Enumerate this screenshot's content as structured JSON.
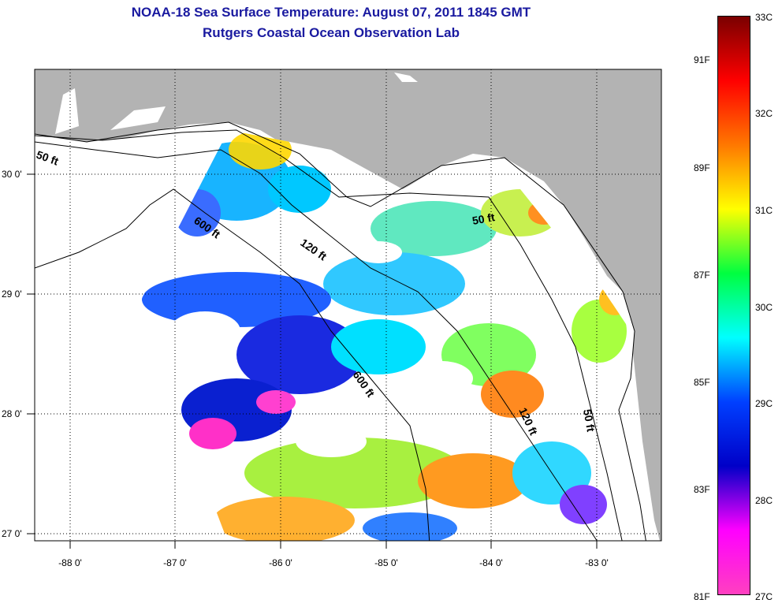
{
  "title": "NOAA-18 Sea Surface Temperature:  August 07, 2011 1845 GMT",
  "subtitle": "Rutgers Coastal Ocean Observation Lab",
  "map": {
    "lon_labels": [
      "-88 0'",
      "-87 0'",
      "-86 0'",
      "-85 0'",
      "-84 0'",
      "-83 0'"
    ],
    "lat_labels": [
      "30 0'",
      "29 0'",
      "28 0'",
      "27 0'"
    ],
    "contour_labels": [
      "50 ft",
      "600 ft",
      "120 ft",
      "50 ft",
      "600 ft",
      "120 ft",
      "50 ft"
    ],
    "land_color": "#b3b3b3",
    "water_nodata_color": "#ffffff"
  },
  "colorbar": {
    "celsius_labels": [
      "33C",
      "32C",
      "31C",
      "30C",
      "29C",
      "28C",
      "27C"
    ],
    "fahrenheit_labels": [
      "91F",
      "89F",
      "87F",
      "85F",
      "83F",
      "81F"
    ],
    "gradient_stops": [
      "#7a0000",
      "#ff0000",
      "#ff7800",
      "#ffff00",
      "#00ff40",
      "#00ffff",
      "#0040ff",
      "#0000c8",
      "#ff00ff",
      "#ff40c0"
    ]
  }
}
